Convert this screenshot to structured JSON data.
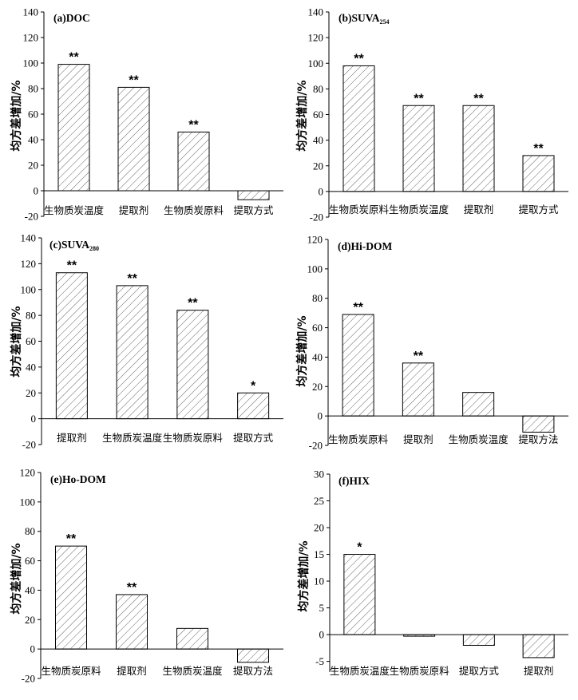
{
  "chart_data": [
    {
      "type": "bar",
      "title": "(a)DOC",
      "ylabel": "均方差增加/%",
      "ylim": [
        -20,
        140
      ],
      "yticks": [
        -20,
        0,
        20,
        40,
        60,
        80,
        100,
        120,
        140
      ],
      "categories": [
        "生物质炭温度",
        "提取剂",
        "生物质炭原料",
        "提取方式"
      ],
      "values": [
        99,
        81,
        46,
        -7
      ],
      "significance": [
        "**",
        "**",
        "**",
        ""
      ]
    },
    {
      "type": "bar",
      "title": "(b)SUVA",
      "title_sub": "254",
      "ylabel": "均方差增加/%",
      "ylim": [
        -20,
        140
      ],
      "yticks": [
        -20,
        0,
        20,
        40,
        60,
        80,
        100,
        120,
        140
      ],
      "categories": [
        "生物质炭原料",
        "生物质炭温度",
        "提取剂",
        "提取方式"
      ],
      "values": [
        98,
        67,
        67,
        28
      ],
      "significance": [
        "**",
        "**",
        "**",
        "**"
      ]
    },
    {
      "type": "bar",
      "title": "(c)SUVA",
      "title_sub": "280",
      "ylabel": "均方差增加/%",
      "ylim": [
        -20,
        140
      ],
      "yticks": [
        -20,
        0,
        20,
        40,
        60,
        80,
        100,
        120,
        140
      ],
      "categories": [
        "提取剂",
        "生物质炭温度",
        "生物质炭原料",
        "提取方式"
      ],
      "values": [
        113,
        103,
        84,
        20
      ],
      "significance": [
        "**",
        "**",
        "**",
        "*"
      ]
    },
    {
      "type": "bar",
      "title": "(d)Hi-DOM",
      "ylabel": "均方差增加/%",
      "ylim": [
        -20,
        120
      ],
      "yticks": [
        -20,
        0,
        20,
        40,
        60,
        80,
        100,
        120
      ],
      "categories": [
        "生物质炭原料",
        "提取剂",
        "生物质炭温度",
        "提取方法"
      ],
      "values": [
        69,
        36,
        16,
        -11
      ],
      "significance": [
        "**",
        "**",
        "",
        ""
      ]
    },
    {
      "type": "bar",
      "title": "(e)Ho-DOM",
      "ylabel": "均方差增加/%",
      "ylim": [
        -20,
        120
      ],
      "yticks": [
        -20,
        0,
        20,
        40,
        60,
        80,
        100,
        120
      ],
      "categories": [
        "生物质炭原料",
        "提取剂",
        "生物质炭温度",
        "提取方法"
      ],
      "values": [
        70,
        37,
        14,
        -9
      ],
      "significance": [
        "**",
        "**",
        "",
        ""
      ]
    },
    {
      "type": "bar",
      "title": "(f)HIX",
      "ylabel": "均方差增加/%",
      "ylim": [
        -7,
        30
      ],
      "yticks": [
        -5,
        0,
        5,
        10,
        15,
        20,
        25,
        30
      ],
      "categories": [
        "生物质炭温度",
        "生物质炭原料",
        "提取方式",
        "提取剂"
      ],
      "values": [
        15,
        -0.3,
        -2,
        -4.3
      ],
      "significance": [
        "*",
        "",
        "",
        ""
      ]
    }
  ]
}
